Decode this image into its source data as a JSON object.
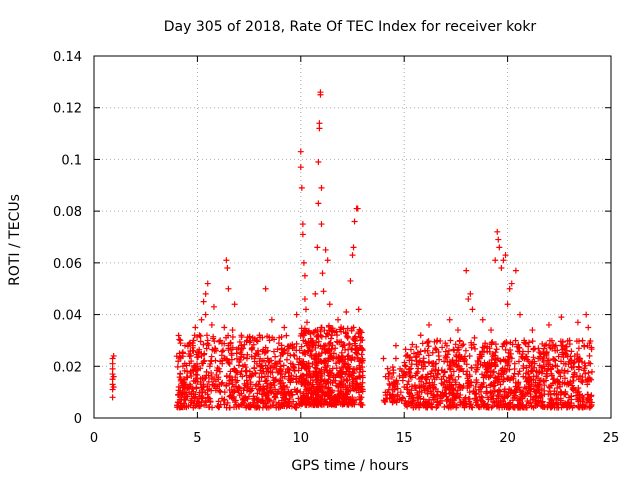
{
  "chart_data": {
    "type": "scatter",
    "title": "Day 305 of 2018, Rate Of TEC Index for receiver kokr",
    "xlabel": "GPS time / hours",
    "ylabel": "ROTI / TECUs",
    "xlim": [
      0,
      25
    ],
    "ylim": [
      0,
      0.14
    ],
    "xticks": [
      0,
      5,
      10,
      15,
      20,
      25
    ],
    "yticks": [
      0,
      0.02,
      0.04,
      0.06,
      0.08,
      0.1,
      0.12,
      0.14
    ],
    "xtick_labels": [
      "0",
      "5",
      "10",
      "15",
      "20",
      "25"
    ],
    "ytick_labels": [
      "0",
      "0.02",
      "0.04",
      "0.06",
      "0.08",
      "0.1",
      "0.12",
      "0.14"
    ],
    "grid": true,
    "marker": "+",
    "color": "#ff0000",
    "series": [
      {
        "name": "ROTI",
        "points": [
          [
            0.9,
            0.008
          ],
          [
            0.9,
            0.011
          ],
          [
            0.9,
            0.013
          ],
          [
            0.9,
            0.015
          ],
          [
            0.9,
            0.017
          ],
          [
            0.9,
            0.019
          ],
          [
            0.9,
            0.021
          ],
          [
            0.9,
            0.023
          ],
          [
            0.95,
            0.024
          ],
          [
            0.95,
            0.012
          ],
          [
            0.95,
            0.016
          ],
          [
            4.1,
            0.012
          ],
          [
            4.2,
            0.015
          ],
          [
            4.3,
            0.02
          ],
          [
            4.3,
            0.025
          ],
          [
            4.4,
            0.028
          ],
          [
            4.5,
            0.018
          ],
          [
            4.6,
            0.01
          ],
          [
            4.7,
            0.022
          ],
          [
            4.8,
            0.03
          ],
          [
            4.9,
            0.035
          ],
          [
            4.9,
            0.02
          ],
          [
            5.0,
            0.014
          ],
          [
            5.1,
            0.032
          ],
          [
            5.2,
            0.038
          ],
          [
            5.2,
            0.024
          ],
          [
            5.3,
            0.045
          ],
          [
            5.3,
            0.012
          ],
          [
            5.4,
            0.048
          ],
          [
            5.4,
            0.04
          ],
          [
            5.5,
            0.052
          ],
          [
            5.5,
            0.03
          ],
          [
            5.6,
            0.02
          ],
          [
            5.7,
            0.036
          ],
          [
            5.8,
            0.043
          ],
          [
            5.9,
            0.026
          ],
          [
            6.0,
            0.015
          ],
          [
            6.1,
            0.03
          ],
          [
            6.2,
            0.021
          ],
          [
            6.3,
            0.035
          ],
          [
            6.4,
            0.061
          ],
          [
            6.45,
            0.058
          ],
          [
            6.5,
            0.05
          ],
          [
            6.5,
            0.028
          ],
          [
            6.6,
            0.018
          ],
          [
            6.7,
            0.034
          ],
          [
            6.8,
            0.044
          ],
          [
            6.9,
            0.025
          ],
          [
            7.0,
            0.012
          ],
          [
            7.2,
            0.02
          ],
          [
            7.4,
            0.03
          ],
          [
            7.6,
            0.016
          ],
          [
            7.8,
            0.024
          ],
          [
            8.0,
            0.032
          ],
          [
            8.2,
            0.018
          ],
          [
            8.3,
            0.05
          ],
          [
            8.4,
            0.026
          ],
          [
            8.6,
            0.038
          ],
          [
            8.8,
            0.015
          ],
          [
            9.0,
            0.022
          ],
          [
            9.2,
            0.035
          ],
          [
            9.4,
            0.019
          ],
          [
            9.6,
            0.027
          ],
          [
            9.8,
            0.04
          ],
          [
            10.0,
            0.103
          ],
          [
            10.0,
            0.097
          ],
          [
            10.05,
            0.089
          ],
          [
            10.1,
            0.075
          ],
          [
            10.1,
            0.071
          ],
          [
            10.15,
            0.06
          ],
          [
            10.2,
            0.055
          ],
          [
            10.2,
            0.046
          ],
          [
            10.25,
            0.042
          ],
          [
            10.3,
            0.037
          ],
          [
            10.3,
            0.028
          ],
          [
            10.4,
            0.02
          ],
          [
            10.5,
            0.012
          ],
          [
            10.6,
            0.033
          ],
          [
            10.7,
            0.048
          ],
          [
            10.8,
            0.066
          ],
          [
            10.85,
            0.083
          ],
          [
            10.85,
            0.099
          ],
          [
            10.9,
            0.112
          ],
          [
            10.9,
            0.114
          ],
          [
            10.95,
            0.125
          ],
          [
            10.95,
            0.126
          ],
          [
            11.0,
            0.089
          ],
          [
            11.0,
            0.075
          ],
          [
            11.05,
            0.056
          ],
          [
            11.1,
            0.049
          ],
          [
            11.2,
            0.065
          ],
          [
            11.3,
            0.061
          ],
          [
            11.4,
            0.044
          ],
          [
            11.5,
            0.032
          ],
          [
            11.6,
            0.025
          ],
          [
            11.8,
            0.038
          ],
          [
            12.0,
            0.022
          ],
          [
            12.2,
            0.041
          ],
          [
            12.4,
            0.053
          ],
          [
            12.5,
            0.063
          ],
          [
            12.55,
            0.066
          ],
          [
            12.6,
            0.076
          ],
          [
            12.7,
            0.081
          ],
          [
            12.75,
            0.081
          ],
          [
            12.8,
            0.042
          ],
          [
            12.9,
            0.03
          ],
          [
            13.0,
            0.018
          ],
          [
            14.0,
            0.023
          ],
          [
            14.1,
            0.016
          ],
          [
            14.2,
            0.01
          ],
          [
            14.5,
            0.014
          ],
          [
            14.6,
            0.023
          ],
          [
            14.6,
            0.028
          ],
          [
            14.8,
            0.019
          ],
          [
            15.0,
            0.012
          ],
          [
            15.3,
            0.016
          ],
          [
            15.6,
            0.022
          ],
          [
            15.8,
            0.032
          ],
          [
            16.0,
            0.026
          ],
          [
            16.2,
            0.036
          ],
          [
            16.4,
            0.02
          ],
          [
            16.6,
            0.03
          ],
          [
            16.8,
            0.015
          ],
          [
            17.0,
            0.024
          ],
          [
            17.2,
            0.038
          ],
          [
            17.4,
            0.018
          ],
          [
            17.6,
            0.034
          ],
          [
            17.8,
            0.028
          ],
          [
            18.0,
            0.057
          ],
          [
            18.1,
            0.046
          ],
          [
            18.2,
            0.048
          ],
          [
            18.3,
            0.042
          ],
          [
            18.4,
            0.031
          ],
          [
            18.6,
            0.022
          ],
          [
            18.8,
            0.038
          ],
          [
            19.0,
            0.027
          ],
          [
            19.2,
            0.034
          ],
          [
            19.4,
            0.061
          ],
          [
            19.5,
            0.072
          ],
          [
            19.55,
            0.069
          ],
          [
            19.6,
            0.066
          ],
          [
            19.7,
            0.058
          ],
          [
            19.8,
            0.061
          ],
          [
            19.9,
            0.063
          ],
          [
            20.0,
            0.044
          ],
          [
            20.1,
            0.05
          ],
          [
            20.2,
            0.052
          ],
          [
            20.4,
            0.057
          ],
          [
            20.6,
            0.04
          ],
          [
            20.8,
            0.03
          ],
          [
            21.0,
            0.022
          ],
          [
            21.2,
            0.034
          ],
          [
            21.4,
            0.018
          ],
          [
            21.6,
            0.025
          ],
          [
            21.8,
            0.028
          ],
          [
            22.0,
            0.036
          ],
          [
            22.2,
            0.015
          ],
          [
            22.4,
            0.02
          ],
          [
            22.6,
            0.039
          ],
          [
            22.8,
            0.025
          ],
          [
            23.0,
            0.03
          ],
          [
            23.2,
            0.016
          ],
          [
            23.4,
            0.037
          ],
          [
            23.5,
            0.023
          ],
          [
            23.7,
            0.028
          ],
          [
            23.8,
            0.04
          ],
          [
            23.9,
            0.035
          ],
          [
            24.0,
            0.021
          ]
        ]
      }
    ],
    "density_bands": [
      {
        "x_start": 4.0,
        "x_end": 9.9,
        "y_min": 0.004,
        "y_max": 0.032,
        "n": 700
      },
      {
        "x_start": 9.9,
        "x_end": 13.0,
        "y_min": 0.005,
        "y_max": 0.036,
        "n": 650
      },
      {
        "x_start": 14.0,
        "x_end": 15.0,
        "y_min": 0.006,
        "y_max": 0.02,
        "n": 60
      },
      {
        "x_start": 15.0,
        "x_end": 24.1,
        "y_min": 0.004,
        "y_max": 0.03,
        "n": 1100
      }
    ]
  }
}
